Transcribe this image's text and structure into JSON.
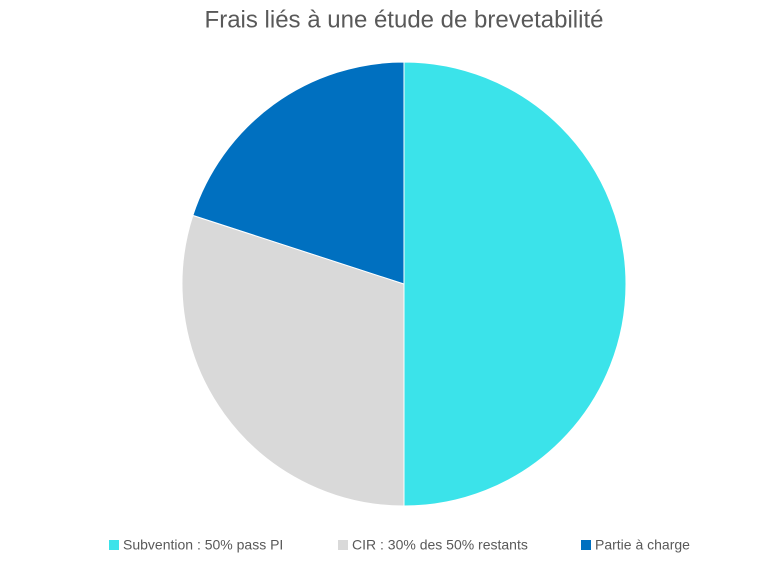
{
  "chart_data": {
    "type": "pie",
    "title": "Frais liés à une étude de brevetabilité",
    "categories": [
      "Subvention : 50% pass PI",
      "CIR : 30% des 50% restants",
      "Partie à charge"
    ],
    "values": [
      50,
      30,
      20
    ],
    "colors": [
      "#3be3ea",
      "#d9d9d9",
      "#0070c0"
    ],
    "legend": "bottom"
  }
}
